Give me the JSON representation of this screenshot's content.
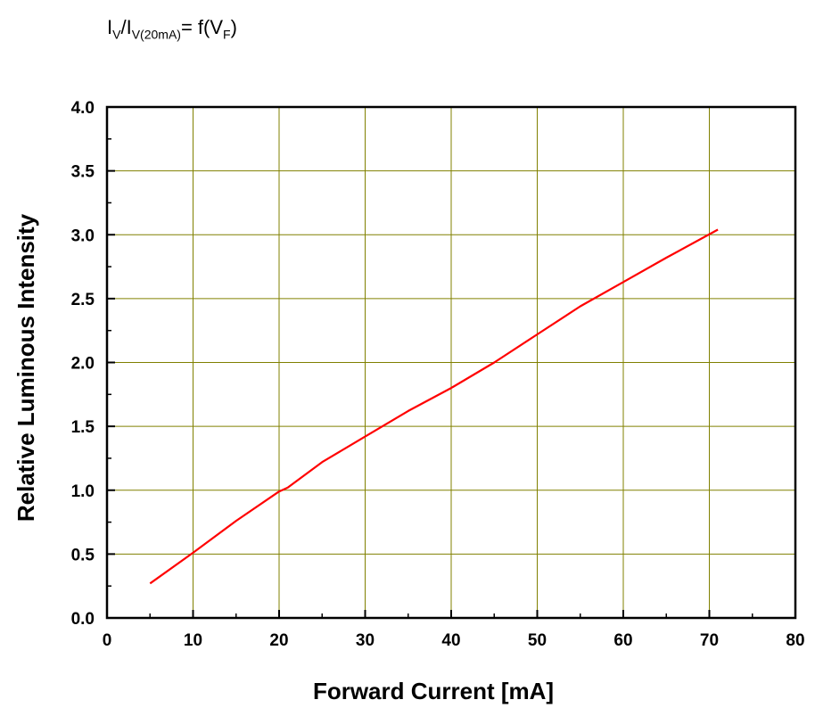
{
  "title": {
    "i": "I",
    "v_sub": "V",
    "slash": "/I",
    "den_sub": "V(20mA)",
    "eq": "= f(V",
    "f_sub": "F",
    "close": ")"
  },
  "chart_data": {
    "type": "line",
    "xlabel": "Forward Current [mA]",
    "ylabel": "Relative Luminous Intensity",
    "xlim": [
      0,
      80
    ],
    "ylim": [
      0,
      4
    ],
    "xticks": [
      0,
      10,
      20,
      30,
      40,
      50,
      60,
      70,
      80
    ],
    "yticks": [
      0.0,
      0.5,
      1.0,
      1.5,
      2.0,
      2.5,
      3.0,
      3.5,
      4.0
    ],
    "xtick_labels": [
      "0",
      "10",
      "20",
      "30",
      "40",
      "50",
      "60",
      "70",
      "80"
    ],
    "ytick_labels": [
      "0.0",
      "0.5",
      "1.0",
      "1.5",
      "2.0",
      "2.5",
      "3.0",
      "3.5",
      "4.0"
    ],
    "grid": true,
    "grid_color": "#808000",
    "line_color": "#ff0000",
    "series": [
      {
        "x": [
          5,
          10,
          15,
          20,
          21,
          25,
          30,
          35,
          40,
          45,
          50,
          55,
          60,
          65,
          71
        ],
        "y": [
          0.27,
          0.51,
          0.76,
          0.99,
          1.02,
          1.22,
          1.42,
          1.62,
          1.8,
          2.0,
          2.22,
          2.44,
          2.63,
          2.82,
          3.04
        ]
      }
    ]
  }
}
